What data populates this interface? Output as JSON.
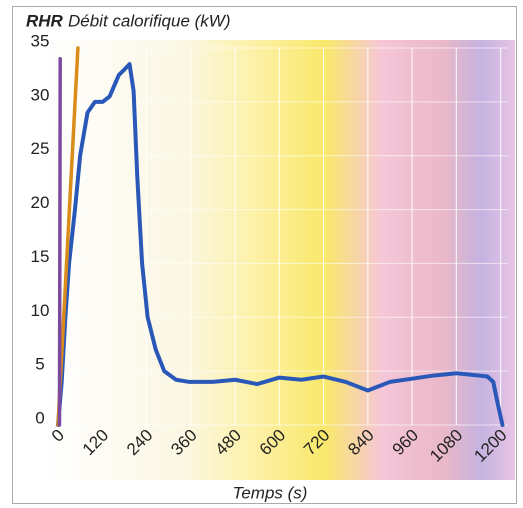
{
  "chart_data": {
    "type": "line",
    "title": "RHR",
    "y_label": "Débit calorifique (kW)",
    "x_label": "Temps (s)",
    "xlim": [
      0,
      1220
    ],
    "ylim": [
      0,
      35
    ],
    "xticks": [
      0,
      120,
      240,
      360,
      480,
      600,
      720,
      840,
      960,
      1080,
      1200
    ],
    "yticks": [
      0,
      5,
      10,
      15,
      20,
      25,
      30,
      35
    ],
    "grid": true,
    "series": [
      {
        "color": "#2a58b8",
        "x": [
          0,
          10,
          20,
          30,
          46,
          60,
          80,
          100,
          121,
          140,
          165,
          180,
          194,
          205,
          215,
          228,
          243,
          265,
          288,
          320,
          356,
          420,
          480,
          540,
          600,
          660,
          720,
          780,
          840,
          900,
          960,
          1020,
          1080,
          1140,
          1164,
          1180,
          1192,
          1205
        ],
        "values": [
          0,
          4,
          10,
          15,
          20,
          25,
          29,
          30,
          30,
          30.5,
          32.5,
          33,
          33.5,
          31,
          23,
          15,
          10,
          7,
          5,
          4.2,
          4,
          4,
          4.2,
          3.8,
          4.4,
          4.2,
          4.5,
          4,
          3.2,
          4,
          4.3,
          4.6,
          4.8,
          4.6,
          4.5,
          4,
          2,
          0
        ]
      },
      {
        "color": "#d98c1a",
        "x": [
          0,
          54
        ],
        "values": [
          0,
          35
        ]
      },
      {
        "color": "#7b4a9e",
        "x": [
          4,
          6
        ],
        "values": [
          0,
          34
        ]
      }
    ]
  }
}
